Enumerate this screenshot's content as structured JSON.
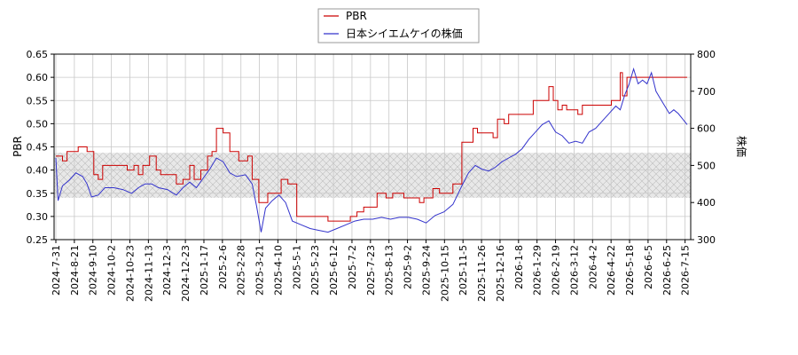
{
  "chart_data": {
    "type": "line",
    "title": "",
    "xlabel": "",
    "ylabel_left": "PBR",
    "ylabel_right": "株価",
    "y_left_range": [
      0.25,
      0.65
    ],
    "y_right_range": [
      300,
      800
    ],
    "y_left_ticks": [
      "0.25",
      "0.30",
      "0.35",
      "0.40",
      "0.45",
      "0.50",
      "0.55",
      "0.60",
      "0.65"
    ],
    "y_right_ticks": [
      "300",
      "400",
      "500",
      "600",
      "700",
      "800"
    ],
    "x_tick_labels": [
      "2024-7-31",
      "2024-8-21",
      "2024-9-10",
      "2024-10-2",
      "2024-10-23",
      "2024-11-13",
      "2024-12-3",
      "2024-12-23",
      "2025-1-17",
      "2025-2-6",
      "2025-2-28",
      "2025-3-21",
      "2025-4-10",
      "2025-5-1",
      "2025-5-23",
      "2025-6-12",
      "2025-7-2",
      "2025-7-23",
      "2025-8-13",
      "2025-9-2",
      "2025-9-24",
      "2025-10-15",
      "2025-11-5",
      "2025-11-26",
      "2025-12-16",
      "2026-1-8",
      "2026-1-29",
      "2026-2-19",
      "2026-3-12",
      "2026-4-2",
      "2026-4-22",
      "2026-5-18",
      "2026-6-5",
      "2026-6-25",
      "2026-7-15"
    ],
    "grid": true,
    "legend_position": "top-center",
    "shaded_band_right_axis": [
      413,
      534
    ],
    "series": [
      {
        "name": "PBR",
        "axis": "left",
        "color": "#cc0000",
        "step": true,
        "points": [
          [
            0,
            0.43
          ],
          [
            3,
            0.42
          ],
          [
            5,
            0.44
          ],
          [
            10,
            0.45
          ],
          [
            14,
            0.44
          ],
          [
            17,
            0.39
          ],
          [
            19,
            0.38
          ],
          [
            21,
            0.41
          ],
          [
            32,
            0.4
          ],
          [
            35,
            0.41
          ],
          [
            37,
            0.39
          ],
          [
            39,
            0.41
          ],
          [
            42,
            0.43
          ],
          [
            45,
            0.4
          ],
          [
            47,
            0.39
          ],
          [
            54,
            0.37
          ],
          [
            57,
            0.38
          ],
          [
            60,
            0.41
          ],
          [
            62,
            0.38
          ],
          [
            65,
            0.4
          ],
          [
            68,
            0.43
          ],
          [
            70,
            0.44
          ],
          [
            72,
            0.49
          ],
          [
            75,
            0.48
          ],
          [
            78,
            0.44
          ],
          [
            82,
            0.42
          ],
          [
            86,
            0.43
          ],
          [
            88,
            0.38
          ],
          [
            91,
            0.33
          ],
          [
            95,
            0.35
          ],
          [
            101,
            0.38
          ],
          [
            104,
            0.37
          ],
          [
            108,
            0.3
          ],
          [
            122,
            0.29
          ],
          [
            132,
            0.3
          ],
          [
            135,
            0.31
          ],
          [
            138,
            0.32
          ],
          [
            144,
            0.35
          ],
          [
            148,
            0.34
          ],
          [
            151,
            0.35
          ],
          [
            156,
            0.34
          ],
          [
            163,
            0.33
          ],
          [
            165,
            0.34
          ],
          [
            169,
            0.36
          ],
          [
            172,
            0.35
          ],
          [
            178,
            0.37
          ],
          [
            182,
            0.46
          ],
          [
            187,
            0.49
          ],
          [
            189,
            0.48
          ],
          [
            196,
            0.47
          ],
          [
            198,
            0.51
          ],
          [
            201,
            0.5
          ],
          [
            203,
            0.52
          ],
          [
            214,
            0.55
          ],
          [
            221,
            0.58
          ],
          [
            223,
            0.55
          ],
          [
            225,
            0.53
          ],
          [
            227,
            0.54
          ],
          [
            229,
            0.53
          ],
          [
            234,
            0.52
          ],
          [
            236,
            0.54
          ],
          [
            249,
            0.55
          ],
          [
            253,
            0.61
          ],
          [
            254,
            0.56
          ],
          [
            256,
            0.6
          ],
          [
            283,
            0.6
          ]
        ]
      },
      {
        "name": "日本シイエムケイの株価",
        "axis": "right",
        "color": "#3333cc",
        "step": false,
        "points": [
          [
            0,
            520
          ],
          [
            1,
            405
          ],
          [
            3,
            445
          ],
          [
            6,
            460
          ],
          [
            9,
            480
          ],
          [
            12,
            470
          ],
          [
            14,
            450
          ],
          [
            16,
            415
          ],
          [
            19,
            420
          ],
          [
            22,
            440
          ],
          [
            26,
            440
          ],
          [
            30,
            435
          ],
          [
            34,
            425
          ],
          [
            37,
            440
          ],
          [
            40,
            450
          ],
          [
            43,
            450
          ],
          [
            46,
            440
          ],
          [
            50,
            435
          ],
          [
            54,
            420
          ],
          [
            57,
            440
          ],
          [
            60,
            455
          ],
          [
            63,
            440
          ],
          [
            66,
            465
          ],
          [
            69,
            490
          ],
          [
            72,
            520
          ],
          [
            75,
            510
          ],
          [
            78,
            480
          ],
          [
            81,
            470
          ],
          [
            85,
            475
          ],
          [
            88,
            450
          ],
          [
            90,
            390
          ],
          [
            92,
            320
          ],
          [
            94,
            385
          ],
          [
            97,
            405
          ],
          [
            100,
            420
          ],
          [
            103,
            400
          ],
          [
            106,
            350
          ],
          [
            110,
            340
          ],
          [
            114,
            330
          ],
          [
            118,
            325
          ],
          [
            122,
            320
          ],
          [
            126,
            330
          ],
          [
            130,
            340
          ],
          [
            134,
            350
          ],
          [
            138,
            355
          ],
          [
            142,
            355
          ],
          [
            146,
            360
          ],
          [
            150,
            355
          ],
          [
            154,
            360
          ],
          [
            158,
            360
          ],
          [
            162,
            355
          ],
          [
            166,
            345
          ],
          [
            170,
            365
          ],
          [
            174,
            375
          ],
          [
            178,
            395
          ],
          [
            180,
            420
          ],
          [
            182,
            445
          ],
          [
            185,
            480
          ],
          [
            188,
            500
          ],
          [
            191,
            490
          ],
          [
            194,
            485
          ],
          [
            197,
            495
          ],
          [
            200,
            510
          ],
          [
            203,
            520
          ],
          [
            206,
            530
          ],
          [
            209,
            545
          ],
          [
            212,
            570
          ],
          [
            215,
            590
          ],
          [
            218,
            610
          ],
          [
            221,
            620
          ],
          [
            224,
            590
          ],
          [
            227,
            580
          ],
          [
            230,
            560
          ],
          [
            233,
            565
          ],
          [
            236,
            560
          ],
          [
            239,
            590
          ],
          [
            242,
            600
          ],
          [
            245,
            620
          ],
          [
            248,
            640
          ],
          [
            251,
            660
          ],
          [
            253,
            650
          ],
          [
            255,
            690
          ],
          [
            257,
            720
          ],
          [
            259,
            760
          ],
          [
            261,
            720
          ],
          [
            263,
            730
          ],
          [
            265,
            720
          ],
          [
            267,
            750
          ],
          [
            269,
            700
          ],
          [
            271,
            680
          ],
          [
            273,
            660
          ],
          [
            275,
            640
          ],
          [
            277,
            650
          ],
          [
            279,
            640
          ],
          [
            281,
            625
          ],
          [
            283,
            610
          ]
        ]
      }
    ]
  }
}
